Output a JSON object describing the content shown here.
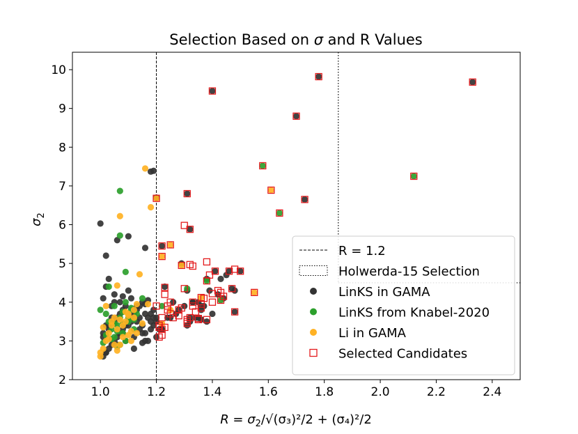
{
  "chart_data": {
    "type": "scatter",
    "title_prefix": "Selection Based on ",
    "title_symbol": "σ",
    "title_suffix": " and R Values",
    "xlabel_prefix": "R = σ",
    "xlabel_rest": "/√(σ₃)²/2 + (σ₄)²/2",
    "ylabel": "σ",
    "ylabel_sub": "2",
    "xlabel_sub": "2",
    "xlim": [
      0.9,
      2.5
    ],
    "ylim": [
      2.0,
      10.45
    ],
    "xticks": [
      1.0,
      1.2,
      1.4,
      1.6,
      1.8,
      2.0,
      2.2,
      2.4
    ],
    "xtick_labels": [
      "1.0",
      "1.2",
      "1.4",
      "1.6",
      "1.8",
      "2.0",
      "2.2",
      "2.4"
    ],
    "yticks": [
      2,
      3,
      4,
      5,
      6,
      7,
      8,
      9,
      10
    ],
    "ytick_labels": [
      "2",
      "3",
      "4",
      "5",
      "6",
      "7",
      "8",
      "9",
      "10"
    ],
    "cut_line_x": 1.2,
    "holwerda_box": {
      "x_max": 1.85,
      "y_min": 4.5
    },
    "colors": {
      "links_gama": "#333333",
      "links_knabel": "#2ca02c",
      "li_gama": "#ffb224",
      "selected": "#e31a1c"
    },
    "legend": {
      "position": "lower-right",
      "items": [
        "R = 1.2",
        "Holwerda-15 Selection",
        "LinKS in GAMA",
        "LinKS from Knabel-2020",
        "Li in GAMA",
        "Selected Candidates"
      ]
    },
    "series": [
      {
        "key": "links_gama",
        "x": [
          1.01,
          1.02,
          1.03,
          1.04,
          1.05,
          1.06,
          1.07,
          1.08,
          1.09,
          1.1,
          1.11,
          1.12,
          1.13,
          1.14,
          1.15,
          1.16,
          1.17,
          1.18,
          1.19,
          1.2,
          1.01,
          1.03,
          1.05,
          1.07,
          1.09,
          1.11,
          1.13,
          1.15,
          1.17,
          1.19,
          1.02,
          1.04,
          1.06,
          1.08,
          1.1,
          1.12,
          1.14,
          1.16,
          1.18,
          1.2,
          1.01,
          1.03,
          1.06,
          1.09,
          1.12,
          1.15,
          1.18,
          1.02,
          1.05,
          1.08,
          1.11,
          1.14,
          1.17,
          1.04,
          1.07,
          1.1,
          1.13,
          1.16,
          1.19,
          1.03,
          1.0,
          1.02,
          1.06,
          1.1,
          1.16,
          1.18,
          1.19,
          1.2,
          1.15,
          1.08,
          1.05,
          1.12,
          1.16,
          1.02,
          1.01,
          1.22,
          1.24,
          1.27,
          1.3,
          1.32,
          1.34,
          1.36,
          1.38,
          1.4,
          1.42,
          1.44,
          1.46,
          1.48,
          1.22,
          1.25,
          1.28,
          1.31,
          1.33,
          1.35,
          1.37,
          1.39,
          1.41,
          1.43,
          1.45,
          1.47,
          1.5,
          1.23,
          1.26,
          1.29,
          1.32,
          1.36,
          1.38,
          1.48,
          1.21,
          1.22,
          1.31,
          1.33,
          1.36,
          1.4,
          1.35,
          1.7,
          1.78,
          2.33,
          1.73,
          1.2,
          1.32,
          1.31
        ],
        "y": [
          2.6,
          2.7,
          2.8,
          2.9,
          3.0,
          3.1,
          3.2,
          3.3,
          3.4,
          3.5,
          3.6,
          3.7,
          3.8,
          3.9,
          4.0,
          3.2,
          3.0,
          3.3,
          3.4,
          3.5,
          3.1,
          3.3,
          3.5,
          3.7,
          3.9,
          4.1,
          3.5,
          3.2,
          3.6,
          3.8,
          3.4,
          3.6,
          2.9,
          3.2,
          3.4,
          3.1,
          3.3,
          3.0,
          3.5,
          3.6,
          3.2,
          3.4,
          3.6,
          3.0,
          2.8,
          2.95,
          3.7,
          2.7,
          4.2,
          3.8,
          3.5,
          3.6,
          4.05,
          3.9,
          4.0,
          4.3,
          3.9,
          3.95,
          3.6,
          4.6,
          6.03,
          5.2,
          5.6,
          5.7,
          5.4,
          7.37,
          7.39,
          3.1,
          3.4,
          4.15,
          4.0,
          3.8,
          3.7,
          4.4,
          4.1,
          3.3,
          3.6,
          3.7,
          3.9,
          3.5,
          3.6,
          3.9,
          3.5,
          3.7,
          4.2,
          4.1,
          4.8,
          4.3,
          3.3,
          3.6,
          3.8,
          3.4,
          4.0,
          3.6,
          3.9,
          4.3,
          4.8,
          4.6,
          4.7,
          4.35,
          4.8,
          4.4,
          4.0,
          5.0,
          3.6,
          3.55,
          4.6,
          3.75,
          3.3,
          5.45,
          4.3,
          4.0,
          3.8,
          9.45,
          4.0,
          8.8,
          9.82,
          9.68,
          6.65,
          6.7,
          5.88,
          6.8
        ]
      },
      {
        "key": "links_knabel",
        "x": [
          1.0,
          1.02,
          1.03,
          1.04,
          1.05,
          1.06,
          1.07,
          1.08,
          1.09,
          1.1,
          1.12,
          1.13,
          1.03,
          1.05,
          1.07,
          1.09,
          1.11,
          1.02,
          1.06,
          1.08,
          1.1,
          1.04,
          1.11,
          1.07,
          1.09,
          1.12,
          1.06,
          1.08,
          1.01,
          1.05,
          1.07,
          1.15,
          1.22,
          1.31,
          1.38,
          1.43,
          1.58,
          1.64,
          2.12
        ],
        "y": [
          3.8,
          3.7,
          3.5,
          3.3,
          3.1,
          3.4,
          3.6,
          3.2,
          3.0,
          3.5,
          3.3,
          3.7,
          4.4,
          3.9,
          2.9,
          4.0,
          3.85,
          3.15,
          2.85,
          3.45,
          3.6,
          3.05,
          3.8,
          6.87,
          4.78,
          3.55,
          3.25,
          3.75,
          2.95,
          3.45,
          5.72,
          4.1,
          3.9,
          4.35,
          4.55,
          4.05,
          7.52,
          6.3,
          7.25
        ]
      },
      {
        "key": "li_gama",
        "x": [
          1.0,
          1.01,
          1.02,
          1.03,
          1.04,
          1.05,
          1.06,
          1.07,
          1.08,
          1.09,
          1.1,
          1.11,
          1.12,
          1.13,
          1.02,
          1.04,
          1.06,
          1.08,
          1.1,
          1.12,
          1.01,
          1.03,
          1.05,
          1.07,
          1.09,
          1.11,
          1.0,
          1.13,
          1.15,
          1.16,
          1.18,
          1.07,
          1.06,
          1.14,
          1.17,
          1.1,
          1.22,
          1.25,
          1.29,
          1.36,
          1.55,
          1.2,
          1.61,
          1.25,
          1.22
        ],
        "y": [
          2.6,
          2.8,
          3.0,
          3.2,
          3.4,
          3.6,
          3.3,
          2.9,
          3.1,
          3.5,
          3.7,
          3.0,
          3.8,
          3.2,
          3.9,
          3.5,
          2.75,
          3.4,
          3.15,
          3.6,
          3.35,
          3.05,
          2.9,
          3.55,
          3.75,
          3.25,
          2.7,
          3.95,
          3.45,
          7.45,
          6.45,
          6.22,
          4.43,
          4.72,
          3.95,
          3.65,
          5.18,
          5.48,
          4.95,
          4.12,
          4.25,
          6.68,
          6.89,
          3.8,
          3.45
        ]
      },
      {
        "key": "selected",
        "x": [
          1.2,
          1.21,
          1.22,
          1.22,
          1.23,
          1.24,
          1.25,
          1.26,
          1.28,
          1.29,
          1.3,
          1.31,
          1.32,
          1.33,
          1.34,
          1.35,
          1.36,
          1.37,
          1.38,
          1.39,
          1.4,
          1.41,
          1.42,
          1.43,
          1.44,
          1.46,
          1.47,
          1.48,
          1.5,
          1.23,
          1.25,
          1.28,
          1.31,
          1.33,
          1.36,
          1.38,
          1.22,
          1.25,
          1.29,
          1.32,
          1.36,
          1.38,
          1.4,
          1.43,
          1.48,
          1.55,
          1.21,
          1.22,
          1.31,
          1.33,
          1.4,
          1.58,
          1.61,
          1.64,
          1.7,
          1.73,
          1.78,
          2.12,
          2.33,
          1.2,
          1.31,
          1.32,
          1.23,
          1.21,
          1.22,
          1.24,
          1.3,
          1.35
        ],
        "y": [
          3.9,
          3.4,
          3.3,
          3.6,
          4.2,
          3.9,
          3.7,
          3.6,
          3.8,
          3.85,
          4.35,
          3.55,
          3.6,
          3.9,
          3.75,
          3.55,
          3.85,
          4.1,
          4.55,
          4.7,
          4.0,
          4.8,
          4.3,
          4.25,
          4.15,
          4.8,
          4.35,
          3.75,
          4.8,
          4.38,
          4.0,
          3.65,
          3.45,
          4.93,
          3.95,
          3.55,
          5.18,
          5.48,
          4.95,
          4.97,
          4.12,
          5.04,
          4.22,
          4.05,
          4.85,
          4.25,
          3.1,
          3.15,
          3.5,
          4.0,
          9.45,
          7.52,
          6.89,
          6.3,
          8.8,
          6.65,
          9.82,
          7.25,
          9.68,
          6.68,
          6.8,
          5.88,
          3.35,
          3.35,
          5.45,
          3.8,
          5.98,
          3.58
        ]
      }
    ]
  }
}
